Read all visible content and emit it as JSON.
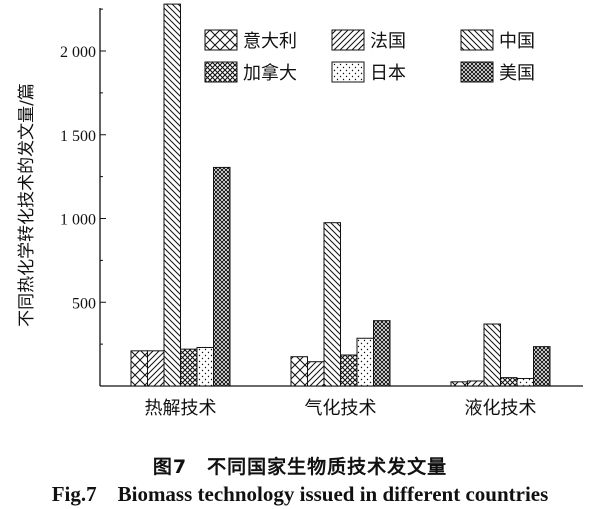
{
  "chart_data": {
    "type": "bar",
    "ylabel": "不同热化学转化技术的发文量/篇",
    "ylim": [
      0,
      2300
    ],
    "yticks": [
      500,
      1000,
      1500,
      2000
    ],
    "ytick_labels": [
      "500",
      "1 000",
      "1 500",
      "2 000"
    ],
    "categories": [
      "热解技术",
      "气化技术",
      "液化技术"
    ],
    "series": [
      {
        "name": "意大利",
        "pattern": "cross",
        "values": [
          210,
          175,
          25
        ]
      },
      {
        "name": "法国",
        "pattern": "forward-diag",
        "values": [
          210,
          145,
          30
        ]
      },
      {
        "name": "中国",
        "pattern": "back-diag",
        "values": [
          2280,
          975,
          370
        ]
      },
      {
        "name": "加拿大",
        "pattern": "crosshatch",
        "values": [
          220,
          185,
          50
        ]
      },
      {
        "name": "日本",
        "pattern": "dots",
        "values": [
          230,
          285,
          45
        ]
      },
      {
        "name": "美国",
        "pattern": "dense-cross",
        "values": [
          1305,
          390,
          235
        ]
      }
    ],
    "legend_position": "top-right",
    "grid": false
  },
  "caption": {
    "cn": "图7　不同国家生物质技术发文量",
    "en": "Fig.7　Biomass technology issued in different countries"
  }
}
